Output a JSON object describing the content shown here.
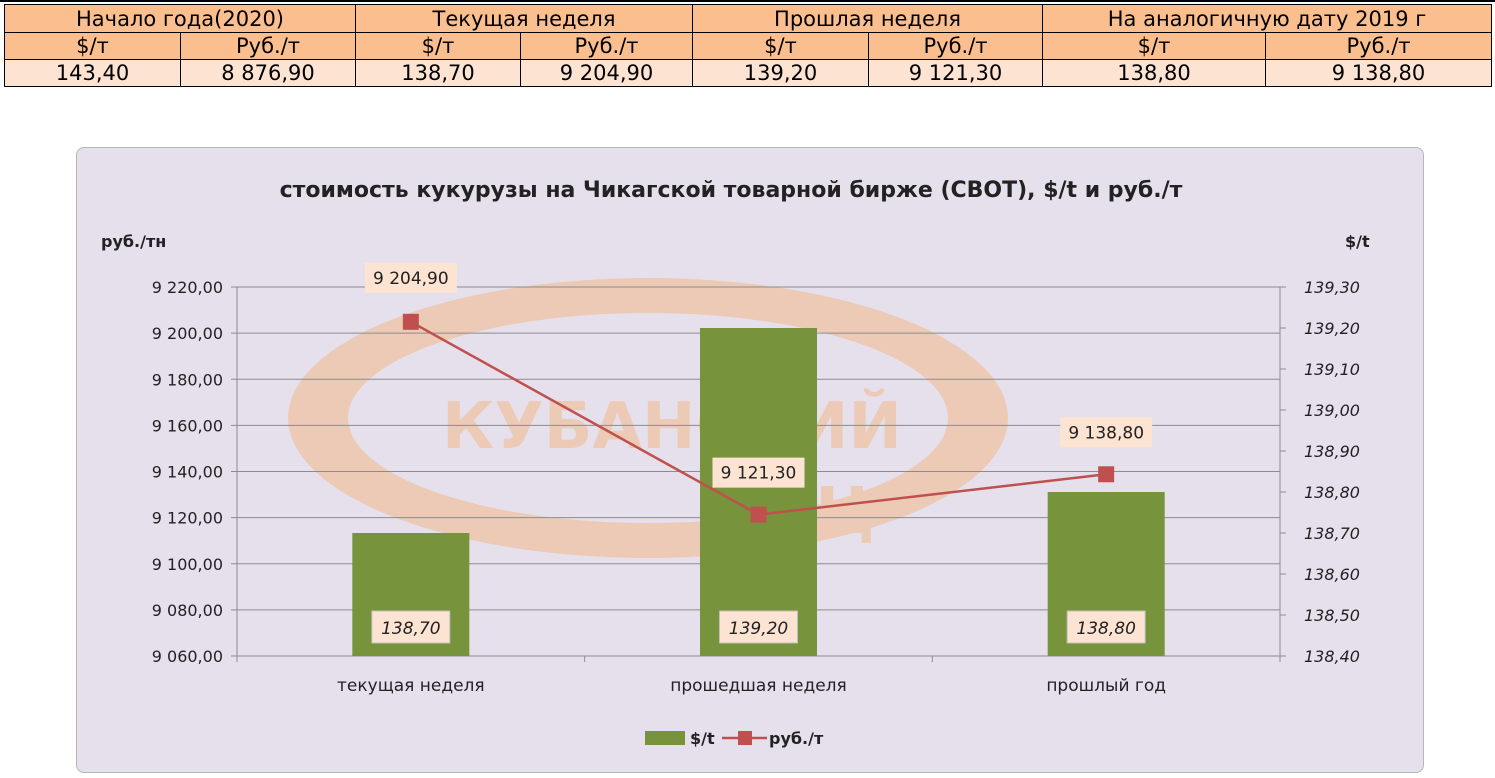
{
  "table": {
    "groups": [
      "Начало года(2020)",
      "Текущая неделя",
      "Прошлая неделя",
      "На аналогичную дату 2019 г"
    ],
    "units": [
      "$/т",
      "Руб./т",
      "$/т",
      "Руб./т",
      "$/т",
      "Руб./т",
      "$/т",
      "Руб./т"
    ],
    "values": [
      "143,40",
      "8 876,90",
      "138,70",
      "9 204,90",
      "139,20",
      "9 121,30",
      "138,80",
      "9 138,80"
    ]
  },
  "watermark": {
    "line1": "КУБАНСКИЙ",
    "line2": "ИКЦ"
  },
  "chart_data": {
    "type": "bar",
    "title": "стоимость кукурузы на Чикагской товарной бирже (CBOT), $/t и руб./т",
    "categories": [
      "текущая неделя",
      "прошедшая неделя",
      "прошлый год"
    ],
    "left_axis": {
      "label": "руб./тн",
      "ticks": [
        "9 220,00",
        "9 200,00",
        "9 180,00",
        "9 160,00",
        "9 140,00",
        "9 120,00",
        "9 100,00",
        "9 080,00",
        "9 060,00"
      ],
      "ylim": [
        9060,
        9220
      ]
    },
    "right_axis": {
      "label": "$/t",
      "ticks": [
        "139,30",
        "139,20",
        "139,10",
        "139,00",
        "138,90",
        "138,80",
        "138,70",
        "138,60",
        "138,50",
        "138,40"
      ],
      "ylim": [
        138.4,
        139.3
      ]
    },
    "series": [
      {
        "name": "$/t",
        "type": "bar",
        "axis": "right",
        "values": [
          138.7,
          139.2,
          138.8
        ],
        "labels": [
          "138,70",
          "139,20",
          "138,80"
        ],
        "color": "#77933c"
      },
      {
        "name": "руб./т",
        "type": "line",
        "axis": "left",
        "values": [
          9204.9,
          9121.3,
          9138.8
        ],
        "labels": [
          "9 204,90",
          "9 121,30",
          "9 138,80"
        ],
        "color": "#c0504d"
      }
    ],
    "grid": true,
    "legend": "bottom"
  }
}
